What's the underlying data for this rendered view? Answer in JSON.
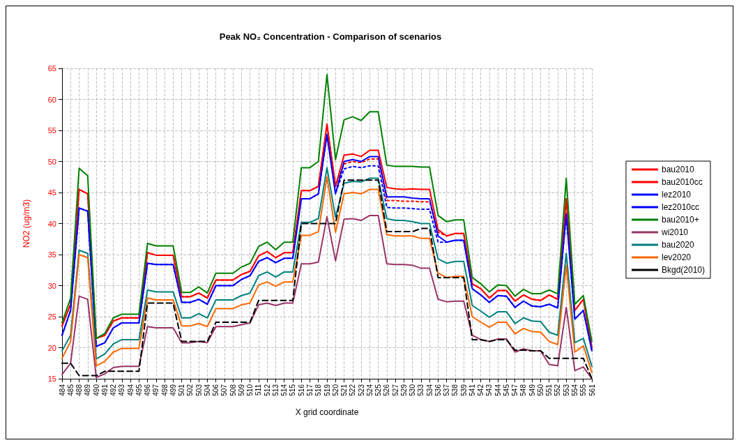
{
  "chart_data": {
    "type": "line",
    "title": "Peak NO₂ Concentration - Comparison of scenarios",
    "xlabel": "X grid coordinate",
    "ylabel": "NO2 (ug/m3)",
    "categories": [
      "484",
      "485",
      "488",
      "489",
      "490",
      "491",
      "492",
      "493",
      "494",
      "495",
      "496",
      "497",
      "498",
      "499",
      "501",
      "502",
      "503",
      "504",
      "506",
      "507",
      "508",
      "509",
      "510",
      "511",
      "512",
      "513",
      "514",
      "515",
      "516",
      "517",
      "518",
      "519",
      "520",
      "521",
      "522",
      "523",
      "524",
      "525",
      "526",
      "527",
      "529",
      "530",
      "533",
      "534",
      "536",
      "537",
      "538",
      "539",
      "541",
      "542",
      "543",
      "544",
      "545",
      "547",
      "548",
      "549",
      "550",
      "551",
      "552",
      "553",
      "554",
      "555",
      "561"
    ],
    "ylim": [
      15,
      65
    ],
    "yticks": [
      15,
      20,
      25,
      30,
      35,
      40,
      45,
      50,
      55,
      60,
      65
    ],
    "grid": true,
    "legend": "right",
    "marker": "none",
    "series": [
      {
        "name": "bau2010",
        "color": "#ff0000",
        "line_style": "solid",
        "values": [
          23.5,
          27,
          45.5,
          44.8,
          21.5,
          22,
          24.3,
          24.8,
          24.8,
          24.8,
          35.3,
          34.9,
          34.9,
          34.9,
          28.2,
          28.2,
          28.8,
          28,
          30.9,
          30.9,
          30.9,
          31.8,
          32.3,
          34.8,
          35.5,
          34.5,
          35.3,
          35.3,
          45.3,
          45.3,
          46,
          56,
          46,
          51,
          51.2,
          50.8,
          51.8,
          51.8,
          45.8,
          45.6,
          45.5,
          45.6,
          45.5,
          45.5,
          39,
          38,
          38.4,
          38.4,
          30.3,
          29.5,
          28,
          29.2,
          29.2,
          27.5,
          28.5,
          27.8,
          27.6,
          28.5,
          27.8,
          44,
          26,
          27.8,
          20
        ]
      },
      {
        "name": "bau2010cc",
        "color": "#ff0000",
        "line_style": "dotted",
        "values": [
          23.5,
          27,
          45.5,
          44.8,
          21.5,
          22,
          24.3,
          24.8,
          24.8,
          24.8,
          35.3,
          34.9,
          34.9,
          34.9,
          28.2,
          28.2,
          28.8,
          28,
          30.9,
          30.9,
          30.9,
          31.8,
          32.3,
          34.8,
          35.5,
          34.5,
          35.3,
          35.3,
          45.3,
          45.3,
          46,
          56,
          46,
          49.6,
          50,
          49.8,
          50.4,
          50.4,
          43.7,
          43.7,
          43.6,
          43.6,
          43.5,
          43.5,
          38.6,
          38,
          38.4,
          38.4,
          30.3,
          29.5,
          28,
          29.2,
          29.2,
          27.5,
          28.5,
          27.8,
          27.6,
          28.5,
          27.8,
          44,
          26,
          27.8,
          20
        ]
      },
      {
        "name": "lez2010",
        "color": "#0000ff",
        "line_style": "solid",
        "values": [
          22,
          26,
          42.5,
          42,
          20.2,
          20.8,
          23.2,
          24,
          24,
          24,
          33.6,
          33.4,
          33.4,
          33.4,
          27.3,
          27.3,
          27.8,
          27,
          30,
          30,
          30,
          31,
          31.6,
          33.9,
          34.5,
          33.7,
          34.4,
          34.4,
          44,
          44,
          44.8,
          54.3,
          44.8,
          50,
          50.3,
          50,
          50.8,
          50.8,
          44.3,
          44.3,
          44.3,
          44.1,
          44,
          44,
          38,
          37,
          37.3,
          37.3,
          29.5,
          28.5,
          27.3,
          28.4,
          28.3,
          26.5,
          27.5,
          26.7,
          26.6,
          27,
          26.4,
          41.5,
          24.6,
          26,
          19.5
        ]
      },
      {
        "name": "lez2010cc",
        "color": "#0000ff",
        "line_style": "dotted",
        "values": [
          22,
          26,
          42.5,
          42,
          20.2,
          20.8,
          23.2,
          24,
          24,
          24,
          33.6,
          33.4,
          33.4,
          33.4,
          27.3,
          27.3,
          27.8,
          27,
          30,
          30,
          30,
          31,
          31.6,
          33.9,
          34.5,
          33.7,
          34.4,
          34.4,
          44,
          44,
          44.8,
          54.3,
          44.8,
          48.8,
          49.2,
          49,
          49.3,
          49.3,
          42.6,
          42.5,
          42.5,
          42.4,
          42.3,
          42.3,
          37,
          37,
          37.3,
          37.3,
          29.5,
          28.5,
          27.3,
          28.4,
          28.3,
          26.5,
          27.5,
          26.7,
          26.6,
          27,
          26.4,
          41.5,
          24.6,
          26,
          19.5
        ]
      },
      {
        "name": "bau2010+",
        "color": "#008000",
        "line_style": "solid",
        "values": [
          24,
          28,
          48.9,
          47.7,
          21.5,
          22.3,
          24.8,
          25.4,
          25.4,
          25.4,
          36.8,
          36.4,
          36.4,
          36.4,
          28.9,
          28.9,
          29.8,
          28.8,
          32,
          32,
          32,
          33,
          33.6,
          36.3,
          37,
          35.8,
          37,
          37,
          49,
          49,
          50,
          64,
          50.3,
          56.7,
          57.2,
          56.6,
          58,
          58,
          49.4,
          49.2,
          49.2,
          49.2,
          49.1,
          49.1,
          41.3,
          40.3,
          40.6,
          40.6,
          31.3,
          30.3,
          29,
          30.1,
          30,
          28.3,
          29.4,
          28.7,
          28.7,
          29.3,
          28.7,
          47.3,
          27,
          28.4,
          21
        ]
      },
      {
        "name": "wi2010",
        "color": "#993366",
        "line_style": "solid",
        "values": [
          15.7,
          17.5,
          28.3,
          27.8,
          15.2,
          15.8,
          16.8,
          17,
          17,
          17,
          23.4,
          23.2,
          23.2,
          23.2,
          20.8,
          20.8,
          21,
          20.8,
          23.4,
          23.4,
          23.4,
          23.7,
          24,
          26.9,
          27.2,
          26.8,
          27.2,
          27.2,
          33.5,
          33.5,
          33.8,
          41.1,
          34,
          40.7,
          40.8,
          40.5,
          41.3,
          41.3,
          33.5,
          33.4,
          33.4,
          33.3,
          32.8,
          32.8,
          27.8,
          27.4,
          27.5,
          27.5,
          22,
          21.3,
          21,
          21.4,
          21.4,
          19.3,
          19.8,
          19.5,
          19.5,
          17.3,
          17.1,
          26.5,
          16.3,
          16.9,
          15
        ]
      },
      {
        "name": "bau2020",
        "color": "#008080",
        "line_style": "solid",
        "values": [
          19.5,
          22,
          35.7,
          35.2,
          18.2,
          19,
          20.6,
          21.3,
          21.3,
          21.3,
          29.3,
          29,
          29,
          29,
          24.8,
          24.8,
          25.5,
          24.8,
          27.7,
          27.7,
          27.7,
          28.4,
          28.8,
          31.6,
          32.2,
          31.4,
          32.2,
          32.2,
          40.2,
          40.2,
          40.8,
          49,
          41,
          46.5,
          46.8,
          46.7,
          47.3,
          47.3,
          40.8,
          40.5,
          40.5,
          40.3,
          40,
          40,
          34.3,
          33.6,
          33.9,
          33.9,
          26.8,
          25.9,
          24.9,
          25.8,
          25.8,
          23.9,
          24.8,
          24.3,
          24.2,
          22.5,
          22,
          35.2,
          20.8,
          21.5,
          17
        ]
      },
      {
        "name": "lev2020",
        "color": "#ff6600",
        "line_style": "solid",
        "values": [
          18.3,
          21,
          35,
          34.5,
          17.1,
          17.8,
          19.3,
          19.9,
          19.9,
          19.9,
          28,
          27.7,
          27.7,
          27.7,
          23.5,
          23.5,
          23.9,
          23.4,
          26.3,
          26.3,
          26.3,
          26.9,
          27.2,
          30.1,
          30.6,
          29.9,
          30.6,
          30.6,
          38.1,
          38.1,
          38.7,
          47.5,
          38.6,
          44.8,
          45,
          44.8,
          45.5,
          45.5,
          38.2,
          38,
          38,
          38,
          37.6,
          37.6,
          32,
          31.3,
          31.5,
          31.5,
          25,
          24.1,
          23.3,
          24.1,
          24.1,
          22.2,
          23.1,
          22.6,
          22.5,
          21,
          20.5,
          33.3,
          19.3,
          20.3,
          16
        ]
      },
      {
        "name": "Bkgd(2010)",
        "color": "#000000",
        "line_style": "dashed",
        "values": [
          17.5,
          17.5,
          15.5,
          15.5,
          15.5,
          16.2,
          16.2,
          16.2,
          16.2,
          16.2,
          27.2,
          27.2,
          27.2,
          27.2,
          21,
          21,
          21,
          21,
          24.1,
          24.1,
          24.1,
          24.1,
          24.1,
          27.6,
          27.6,
          27.6,
          27.6,
          27.6,
          40,
          40,
          40,
          40,
          40,
          47,
          47,
          47,
          47,
          47,
          38.7,
          38.7,
          38.7,
          38.7,
          39.2,
          39.2,
          31.3,
          31.3,
          31.3,
          31.3,
          21.3,
          21.3,
          21,
          21.3,
          21.3,
          19.6,
          19.6,
          19.5,
          19.5,
          18.3,
          18.3,
          18.3,
          18.3,
          18.3,
          15
        ]
      }
    ]
  }
}
